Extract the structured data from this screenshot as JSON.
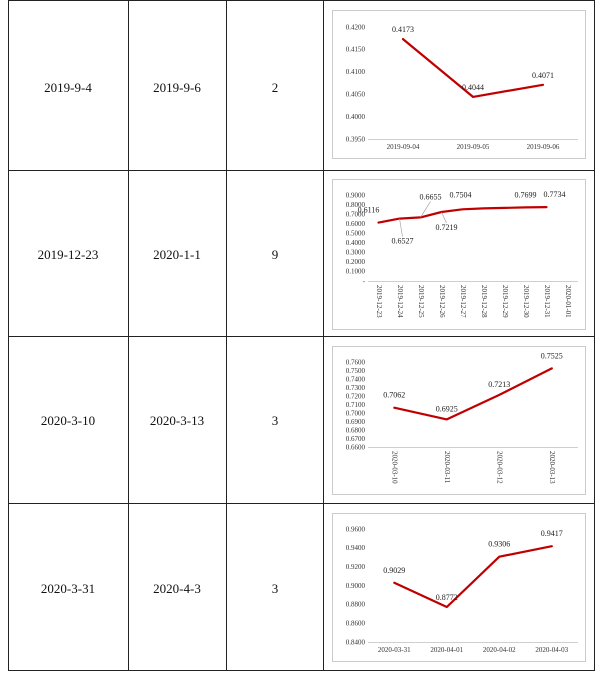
{
  "rows": [
    {
      "start": "2019-9-4",
      "end": "2019-9-6",
      "days": "2"
    },
    {
      "start": "2019-12-23",
      "end": "2020-1-1",
      "days": "9"
    },
    {
      "start": "2020-3-10",
      "end": "2020-3-13",
      "days": "3"
    },
    {
      "start": "2020-3-31",
      "end": "2020-4-3",
      "days": "3"
    }
  ],
  "colors": {
    "line": "#c00000",
    "border": "#222222",
    "chart_border": "#bfbfbf"
  },
  "chart_data": [
    {
      "type": "line",
      "x": [
        "2019-09-04",
        "2019-09-05",
        "2019-09-06"
      ],
      "ytick_labels": [
        "0.4200",
        "0.4150",
        "0.4100",
        "0.4050",
        "0.4000",
        "0.3950"
      ],
      "series": [
        {
          "values": [
            0.4173,
            0.4044,
            0.4071
          ]
        }
      ],
      "data_labels": [
        "0.4173",
        "0.4044",
        "0.4071"
      ],
      "ylim": [
        0.395,
        0.42
      ],
      "x_label_rotation": "horizontal"
    },
    {
      "type": "line",
      "x": [
        "2019-12-23",
        "2019-12-24",
        "2019-12-25",
        "2019-12-26",
        "2019-12-27",
        "2019-12-28",
        "2019-12-29",
        "2019-12-30",
        "2019-12-31",
        "2020-01-01"
      ],
      "ytick_labels": [
        "0.9000",
        "0.8000",
        "0.7000",
        "0.6000",
        "0.5000",
        "0.4000",
        "0.3000",
        "0.2000",
        "0.1000",
        "-"
      ],
      "series": [
        {
          "values": [
            0.6116,
            0.6527,
            0.6655,
            0.7219,
            0.7504,
            0.76,
            0.765,
            0.7699,
            0.7734,
            null
          ]
        }
      ],
      "data_labels": [
        "0.6116",
        "0.6527",
        "0.6655",
        "0.7219",
        "0.7504",
        "",
        "",
        "0.7699",
        "0.7734",
        ""
      ],
      "ylim": [
        0,
        0.9
      ],
      "x_label_rotation": "vertical"
    },
    {
      "type": "line",
      "x": [
        "2020-03-10",
        "2020-03-11",
        "2020-03-12",
        "2020-03-13"
      ],
      "ytick_labels": [
        "0.7600",
        "0.7500",
        "0.7400",
        "0.7300",
        "0.7200",
        "0.7100",
        "0.7000",
        "0.6900",
        "0.6800",
        "0.6700",
        "0.6600"
      ],
      "series": [
        {
          "values": [
            0.7062,
            0.6925,
            0.7213,
            0.7525
          ]
        }
      ],
      "data_labels": [
        "0.7062",
        "0.6925",
        "0.7213",
        "0.7525"
      ],
      "ylim": [
        0.66,
        0.76
      ],
      "x_label_rotation": "vertical"
    },
    {
      "type": "line",
      "x": [
        "2020-03-31",
        "2020-04-01",
        "2020-04-02",
        "2020-04-03"
      ],
      "ytick_labels": [
        "0.9600",
        "0.9400",
        "0.9200",
        "0.9000",
        "0.8800",
        "0.8600",
        "0.8400"
      ],
      "series": [
        {
          "values": [
            0.9029,
            0.8772,
            0.9306,
            0.9417
          ]
        }
      ],
      "data_labels": [
        "0.9029",
        "0.8772",
        "0.9306",
        "0.9417"
      ],
      "ylim": [
        0.84,
        0.96
      ],
      "x_label_rotation": "horizontal"
    }
  ]
}
